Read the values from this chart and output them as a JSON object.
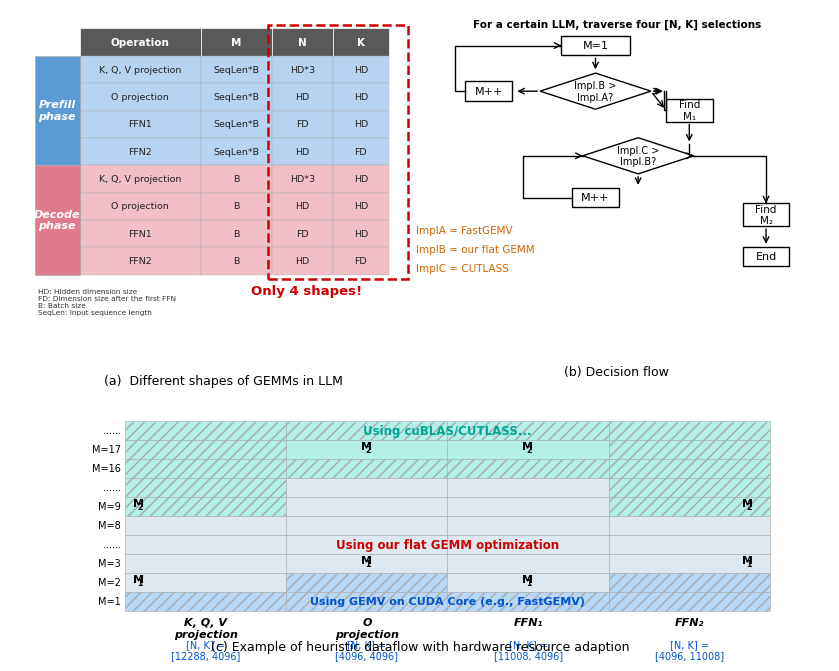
{
  "panel_a_title": "(a)  Different shapes of GEMMs in LLM",
  "panel_b_title": "(b) Decision flow",
  "panel_c_title": "(c) Example of heuristic dataflow with hardware resource adaption",
  "table_header": [
    "Operation",
    "M",
    "N",
    "K"
  ],
  "table_prefill": [
    [
      "K, Q, V projection",
      "SeqLen*B",
      "HD*3",
      "HD"
    ],
    [
      "O projection",
      "SeqLen*B",
      "HD",
      "HD"
    ],
    [
      "FFN1",
      "SeqLen*B",
      "FD",
      "HD"
    ],
    [
      "FFN2",
      "SeqLen*B",
      "HD",
      "FD"
    ]
  ],
  "table_decode": [
    [
      "K, Q, V projection",
      "B",
      "HD*3",
      "HD"
    ],
    [
      "O projection",
      "B",
      "HD",
      "HD"
    ],
    [
      "FFN1",
      "B",
      "FD",
      "HD"
    ],
    [
      "FFN2",
      "B",
      "HD",
      "FD"
    ]
  ],
  "prefill_color": "#5b9bd5",
  "decode_color": "#e07b8e",
  "prefill_row_color": "#b8d3ef",
  "decode_row_color": "#f0bfc7",
  "header_color": "#595959",
  "legend_text": "HD: Hidden dimension size\nFD: Dimension size after the first FFN\nB: Batch size\nSeqLen: Input sequence length",
  "only4shapes_text": "Only 4 shapes!",
  "for_certain_text": "For a certain LLM, traverse four [N, K] selections",
  "implA_text": "ImplA = FastGEMV",
  "implB_text": "ImplB = our flat GEMM",
  "implC_text": "ImplC = CUTLASS",
  "grid_rows": [
    "......",
    "M=17",
    "M=16",
    "......",
    "M=9",
    "M=8",
    "......",
    "M=3",
    "M=2",
    "M=1"
  ],
  "grid_cols": [
    "K, Q, V\nprojection",
    "O\nprojection",
    "FFN₁",
    "FFN₂"
  ],
  "nk_labels": [
    "[N, K] =\n[12288, 4096]",
    "[N, K] =\n[4096, 4096]",
    "[N, K] =\n[11008, 4096]",
    "[N, K] =\n[4096, 11008]"
  ],
  "cutlass_color": "#b2f0e8",
  "flat_color": "#dde8f0",
  "gemv_color": "#b8d8f8",
  "cutlass_text": "Using cuBLAS/CUTLASS...",
  "flat_gemm_text": "Using our flat GEMM optimization",
  "gemv_text": "Using GEMV on CUDA Core (e.g., FastGEMV)",
  "cutlass_text_color": "#00a896",
  "flat_gemm_text_color": "#cc0000",
  "gemv_text_color": "#0055cc",
  "impl_text_color": "#cc6600"
}
